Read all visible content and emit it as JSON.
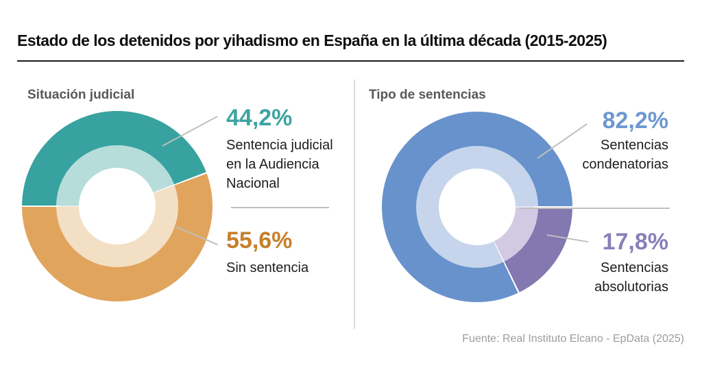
{
  "title": "Estado de los detenidos por yihadismo en España en la última década (2015-2025)",
  "footer": {
    "source": "Fuente: Real Instituto Elcano - EpData (2025)"
  },
  "chart_data": [
    {
      "type": "pie",
      "variant": "two-tone-donut",
      "title": "Situación judicial",
      "units": "%",
      "start_angle_deg": 270,
      "seam_deg": 0.5,
      "slices": [
        {
          "label": "Sentencia judicial en la Audiencia Nacional",
          "label_display": "Sentencia judicial\nen la Audiencia\nNacional",
          "value": 44.2,
          "pct_label": "44,2%",
          "color": "#38a2a0",
          "inner_color": "#b7dddb",
          "pct_color": "#3da4a2"
        },
        {
          "label": "Sin sentencia",
          "label_display": "Sin sentencia",
          "value": 55.6,
          "pct_label": "55,6%",
          "color": "#e1a45d",
          "inner_color": "#f3dfc4",
          "pct_color": "#c67f2a"
        }
      ]
    },
    {
      "type": "pie",
      "variant": "two-tone-donut",
      "title": "Tipo de sentencias",
      "units": "%",
      "start_angle_deg": 154.1,
      "seam_deg": 0.5,
      "slices": [
        {
          "label": "Sentencias condenatorias",
          "label_display": "Sentencias\ncondenatorias",
          "value": 82.2,
          "pct_label": "82,2%",
          "color": "#6892cb",
          "inner_color": "#c6d5ec",
          "pct_color": "#6d98d0"
        },
        {
          "label": "Sentencias absolutorias",
          "label_display": "Sentencias\nabsolutorias",
          "value": 17.8,
          "pct_label": "17,8%",
          "color": "#8478b1",
          "inner_color": "#d1cae2",
          "pct_color": "#8a7eb8"
        }
      ]
    }
  ]
}
